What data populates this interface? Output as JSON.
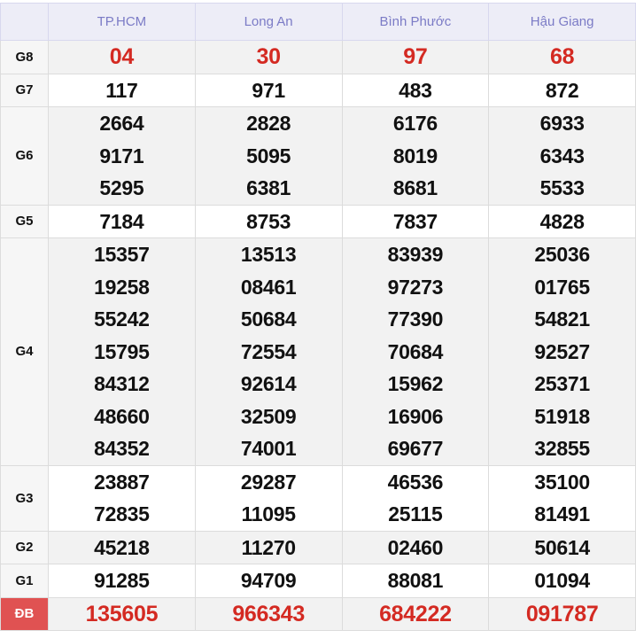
{
  "provinces": [
    "TP.HCM",
    "Long An",
    "Bình Phước",
    "Hậu Giang"
  ],
  "colors": {
    "header_text": "#7b7bc6",
    "special": "#d42a22",
    "db_label_bg": "#e05252"
  },
  "prizes": [
    {
      "label": "G8",
      "highlight": true,
      "values": [
        [
          "04"
        ],
        [
          "30"
        ],
        [
          "97"
        ],
        [
          "68"
        ]
      ]
    },
    {
      "label": "G7",
      "values": [
        [
          "117"
        ],
        [
          "971"
        ],
        [
          "483"
        ],
        [
          "872"
        ]
      ]
    },
    {
      "label": "G6",
      "values": [
        [
          "2664",
          "9171",
          "5295"
        ],
        [
          "2828",
          "5095",
          "6381"
        ],
        [
          "6176",
          "8019",
          "8681"
        ],
        [
          "6933",
          "6343",
          "5533"
        ]
      ]
    },
    {
      "label": "G5",
      "values": [
        [
          "7184"
        ],
        [
          "8753"
        ],
        [
          "7837"
        ],
        [
          "4828"
        ]
      ]
    },
    {
      "label": "G4",
      "values": [
        [
          "15357",
          "19258",
          "55242",
          "15795",
          "84312",
          "48660",
          "84352"
        ],
        [
          "13513",
          "08461",
          "50684",
          "72554",
          "92614",
          "32509",
          "74001"
        ],
        [
          "83939",
          "97273",
          "77390",
          "70684",
          "15962",
          "16906",
          "69677"
        ],
        [
          "25036",
          "01765",
          "54821",
          "92527",
          "25371",
          "51918",
          "32855"
        ]
      ]
    },
    {
      "label": "G3",
      "values": [
        [
          "23887",
          "72835"
        ],
        [
          "29287",
          "11095"
        ],
        [
          "46536",
          "25115"
        ],
        [
          "35100",
          "81491"
        ]
      ]
    },
    {
      "label": "G2",
      "values": [
        [
          "45218"
        ],
        [
          "11270"
        ],
        [
          "02460"
        ],
        [
          "50614"
        ]
      ]
    },
    {
      "label": "G1",
      "values": [
        [
          "91285"
        ],
        [
          "94709"
        ],
        [
          "88081"
        ],
        [
          "01094"
        ]
      ]
    },
    {
      "label": "ĐB",
      "highlight": true,
      "special": true,
      "values": [
        [
          "135605"
        ],
        [
          "966343"
        ],
        [
          "684222"
        ],
        [
          "091787"
        ]
      ]
    }
  ]
}
